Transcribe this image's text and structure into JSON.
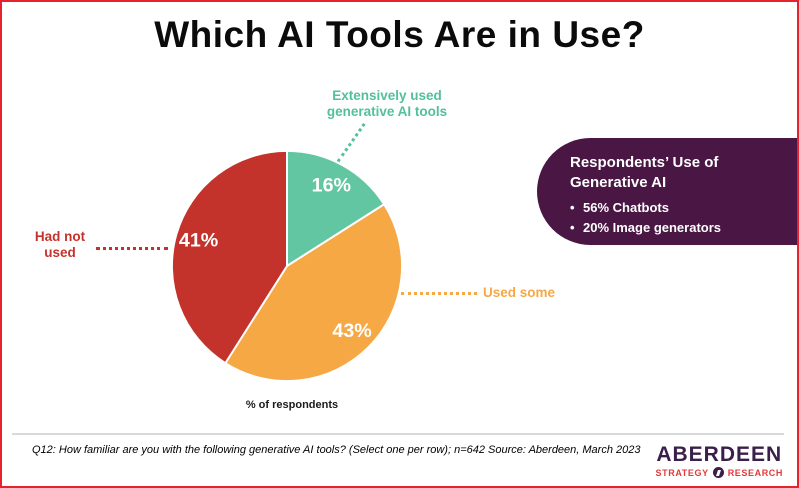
{
  "page": {
    "border_color": "#E8212E",
    "background": "#FFFFFF"
  },
  "title": "Which AI Tools Are in Use?",
  "chart_data": {
    "type": "pie",
    "title": "Which AI Tools Are in Use?",
    "start_angle_deg": 0,
    "direction": "clockwise",
    "unit_note": "% of respondents",
    "slices": [
      {
        "label": "Extensively used generative AI tools",
        "value": 16,
        "pct_label": "16%",
        "color": "#63C6A3"
      },
      {
        "label": "Used some",
        "value": 43,
        "pct_label": "43%",
        "color": "#F5A843"
      },
      {
        "label": "Had not used",
        "value": 41,
        "pct_label": "41%",
        "color": "#C4332B"
      }
    ],
    "slice_label_color": "#FFFFFF",
    "legend_position": "callout-labels"
  },
  "labels": {
    "teal_line1": "Extensively used",
    "teal_line2": "generative AI tools",
    "red_line1": "Had not",
    "red_line2": "used",
    "orange": "Used some",
    "axis_note": "% of respondents"
  },
  "callout": {
    "bg_color": "#4A1745",
    "title_line1": "Respondents’ Use of",
    "title_line2": "Generative AI",
    "bullet_char": "•",
    "bullets": [
      "56% Chatbots",
      "20% Image generators"
    ]
  },
  "footer": {
    "note": "Q12: How familiar are you with the following generative AI tools? (Select one per row); n=642 Source: Aberdeen, March 2023",
    "logo_name": "ABERDEEN",
    "logo_tagline_left": "STRATEGY",
    "logo_tagline_right": "RESEARCH"
  }
}
